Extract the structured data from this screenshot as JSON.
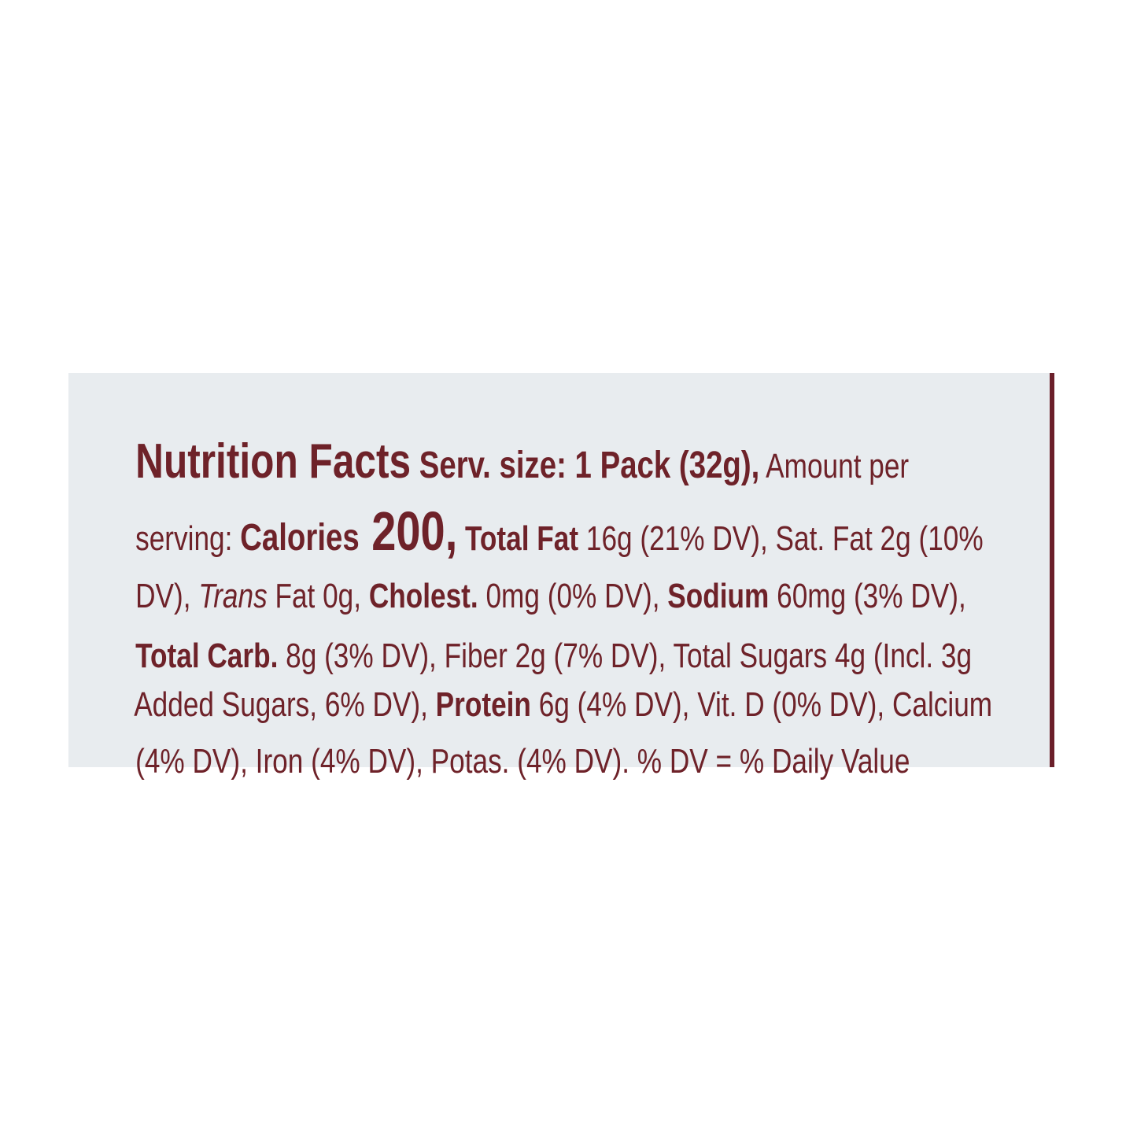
{
  "label": {
    "lines": [
      [
        "Nutrition Facts",
        " Serv. size: 1 Pack (32g),",
        " Amount per"
      ],
      [
        "serving: ",
        "Calories",
        " 200,",
        " Total Fat",
        " 16g (21% DV), Sat. Fat 2g (10%"
      ],
      [
        "DV), ",
        "Trans",
        " Fat 0g, ",
        "Cholest.",
        " 0mg (0% DV), ",
        "Sodium",
        " 60mg (3% DV),"
      ],
      [
        "Total Carb.",
        " 8g (3% DV), Fiber 2g (7% DV), Total Sugars 4g (Incl. 3g"
      ],
      [
        "Added Sugars, 6% DV), ",
        "Protein",
        " 6g (4% DV), Vit. D (0% DV), Calcium"
      ],
      [
        "(4% DV), Iron (4% DV), Potas. (4% DV). % DV = % Daily Value"
      ]
    ]
  }
}
